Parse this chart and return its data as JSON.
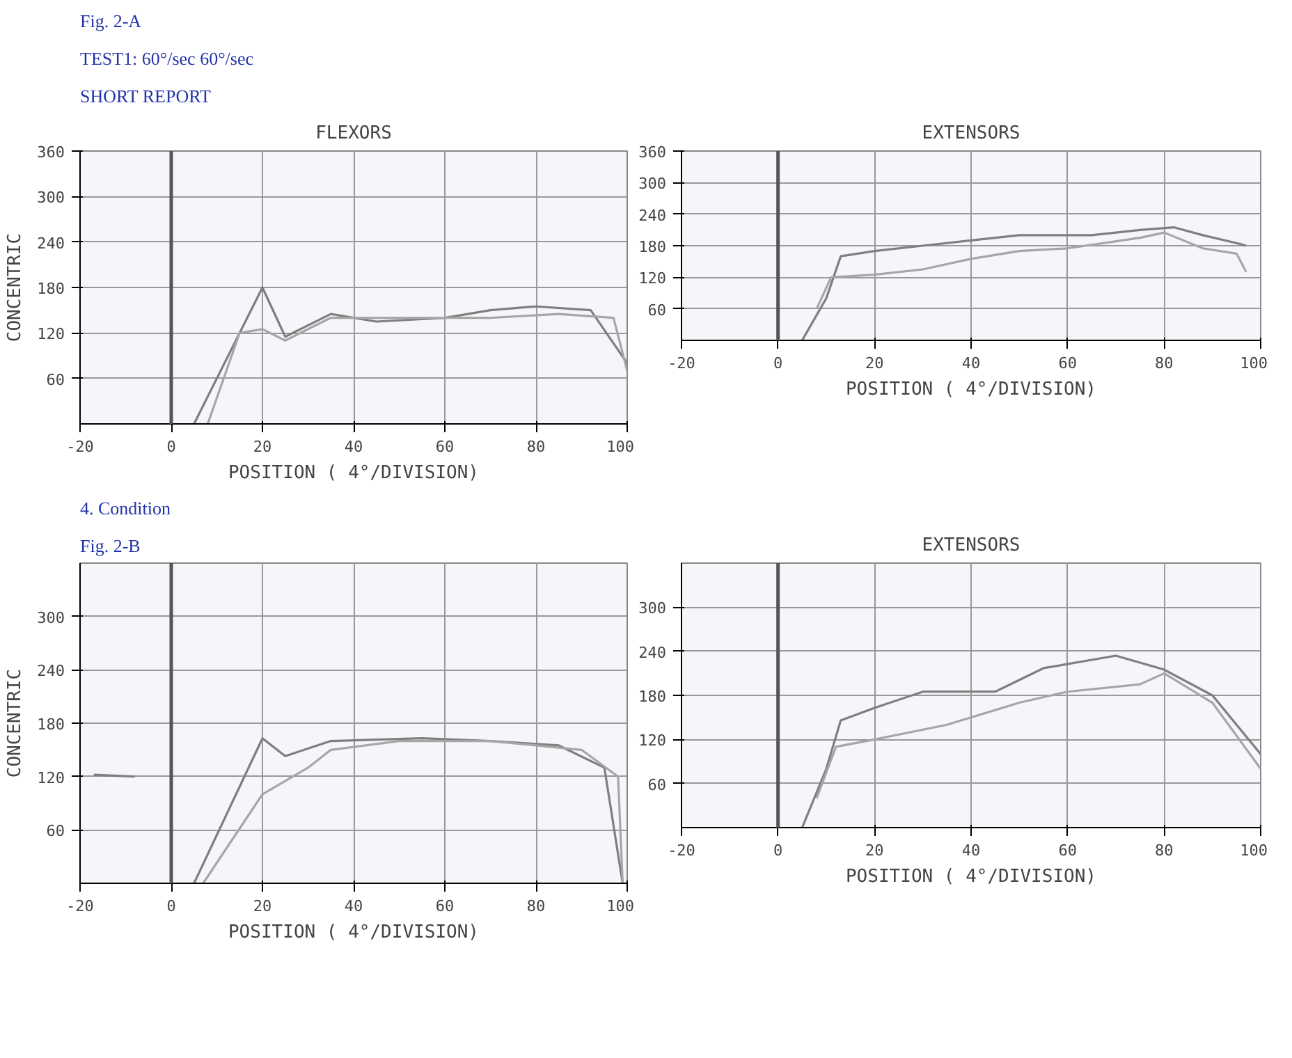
{
  "chart_data": [
    {
      "type": "line",
      "title": "FLEXORS",
      "xlabel": "POSITION ( 4°/DIVISION)",
      "ylabel": "CONCENTRIC",
      "annotations": [
        "Fig. 2-A",
        "TEST1: 60°/sec 60°/sec",
        "SHORT REPORT"
      ],
      "xlim": [
        -20,
        100
      ],
      "ylim": [
        0,
        360
      ],
      "xticks": [
        -20,
        0,
        20,
        40,
        60,
        80,
        100
      ],
      "yticks": [
        60,
        120,
        180,
        240,
        300,
        360
      ],
      "grid": true,
      "ref_lines": [
        {
          "axis": "x",
          "value": 0,
          "color": "#555555"
        }
      ],
      "series": [
        {
          "color": "#7f7f7f",
          "x": [
            5,
            20,
            25,
            35,
            45,
            60,
            70,
            80,
            92,
            100
          ],
          "values": [
            0,
            180,
            115,
            145,
            135,
            140,
            150,
            155,
            150,
            80
          ]
        },
        {
          "color": "#a6a6a6",
          "x": [
            8,
            15,
            20,
            25,
            35,
            50,
            70,
            85,
            97,
            100
          ],
          "values": [
            0,
            120,
            125,
            110,
            140,
            140,
            140,
            145,
            140,
            70
          ]
        }
      ]
    },
    {
      "type": "line",
      "title": "EXTENSORS",
      "xlabel": "POSITION ( 4°/DIVISION)",
      "xlim": [
        -20,
        100
      ],
      "ylim": [
        0,
        360
      ],
      "xticks": [
        -20,
        0,
        20,
        40,
        60,
        80,
        100
      ],
      "yticks": [
        60,
        120,
        180,
        240,
        300,
        360
      ],
      "grid": true,
      "ref_lines": [
        {
          "axis": "x",
          "value": 0,
          "color": "#555555"
        }
      ],
      "series": [
        {
          "color": "#7f7f7f",
          "x": [
            5,
            10,
            13,
            20,
            30,
            40,
            50,
            65,
            75,
            82,
            88,
            95,
            97
          ],
          "values": [
            0,
            80,
            160,
            170,
            180,
            190,
            200,
            200,
            210,
            215,
            200,
            185,
            180
          ]
        },
        {
          "color": "#a6a6a6",
          "x": [
            8,
            11,
            20,
            30,
            40,
            50,
            60,
            75,
            80,
            88,
            95,
            97
          ],
          "values": [
            60,
            120,
            125,
            135,
            155,
            170,
            175,
            195,
            205,
            175,
            165,
            130
          ]
        }
      ]
    },
    {
      "type": "line",
      "xlabel": "POSITION ( 4°/DIVISION)",
      "ylabel": "CONCENTRIC",
      "annotations": [
        "4. Condition",
        "Fig. 2-B"
      ],
      "xlim": [
        -20,
        100
      ],
      "ylim": [
        0,
        360
      ],
      "xticks": [
        -20,
        0,
        20,
        40,
        60,
        80,
        100
      ],
      "yticks": [
        60,
        120,
        180,
        240,
        300
      ],
      "grid": true,
      "ref_lines": [
        {
          "axis": "x",
          "value": 0,
          "color": "#555555"
        }
      ],
      "series": [
        {
          "color": "#7f7f7f",
          "x": [
            -17,
            -8,
            null,
            5,
            20,
            25,
            35,
            55,
            70,
            85,
            95,
            99
          ],
          "values": [
            122,
            120,
            null,
            0,
            163,
            143,
            160,
            163,
            160,
            155,
            130,
            0
          ]
        },
        {
          "color": "#a6a6a6",
          "x": [
            7,
            20,
            30,
            35,
            50,
            70,
            90,
            98,
            99
          ],
          "values": [
            0,
            100,
            130,
            150,
            160,
            160,
            150,
            120,
            0
          ]
        }
      ]
    },
    {
      "type": "line",
      "title": "EXTENSORS",
      "xlabel": "POSITION ( 4°/DIVISION)",
      "xlim": [
        -20,
        100
      ],
      "ylim": [
        0,
        360
      ],
      "xticks": [
        -20,
        0,
        20,
        40,
        60,
        80,
        100
      ],
      "yticks": [
        60,
        120,
        180,
        240,
        300
      ],
      "grid": true,
      "ref_lines": [
        {
          "axis": "x",
          "value": 0,
          "color": "#555555"
        }
      ],
      "series": [
        {
          "color": "#7f7f7f",
          "x": [
            5,
            10,
            13,
            20,
            30,
            45,
            55,
            70,
            80,
            90,
            100
          ],
          "values": [
            0,
            80,
            146,
            163,
            185,
            185,
            217,
            234,
            215,
            180,
            100
          ]
        },
        {
          "color": "#a6a6a6",
          "x": [
            8,
            12,
            20,
            35,
            50,
            60,
            75,
            80,
            90,
            100
          ],
          "values": [
            40,
            110,
            120,
            140,
            170,
            185,
            195,
            210,
            170,
            80
          ]
        }
      ]
    }
  ]
}
